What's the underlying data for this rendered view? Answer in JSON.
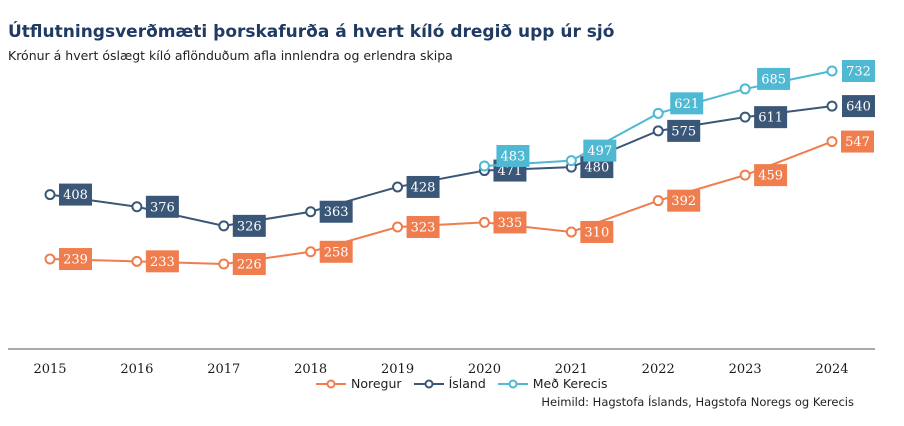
{
  "title": "Útflutningsverðmæti þorskafurða á hvert kíló dregið upp úr sjó",
  "subtitle": "Krónur á hvert óslægt kíló aflönduðum afla innlendra og erlendra skipa",
  "source": "Heimild: Hagstofa Íslands, Hagstofa Noregs og Kerecis",
  "chart_data": {
    "type": "line",
    "categories": [
      "2015",
      "2016",
      "2017",
      "2018",
      "2019",
      "2020",
      "2021",
      "2022",
      "2023",
      "2024"
    ],
    "series": [
      {
        "name": "Noregur",
        "color": "#ef7d4e",
        "values": [
          239,
          233,
          226,
          258,
          323,
          335,
          310,
          392,
          459,
          547
        ]
      },
      {
        "name": "Ísland",
        "color": "#3b5778",
        "values": [
          408,
          376,
          326,
          363,
          428,
          471,
          480,
          575,
          611,
          640
        ]
      },
      {
        "name": "Með Kerecis",
        "color": "#4fb8d2",
        "x": [
          "2020",
          "2021",
          "2022",
          "2023",
          "2024"
        ],
        "values": [
          483,
          497,
          621,
          685,
          732
        ]
      }
    ],
    "ylim": [
      0,
      800
    ],
    "grid": false,
    "legend_position": "bottom"
  }
}
